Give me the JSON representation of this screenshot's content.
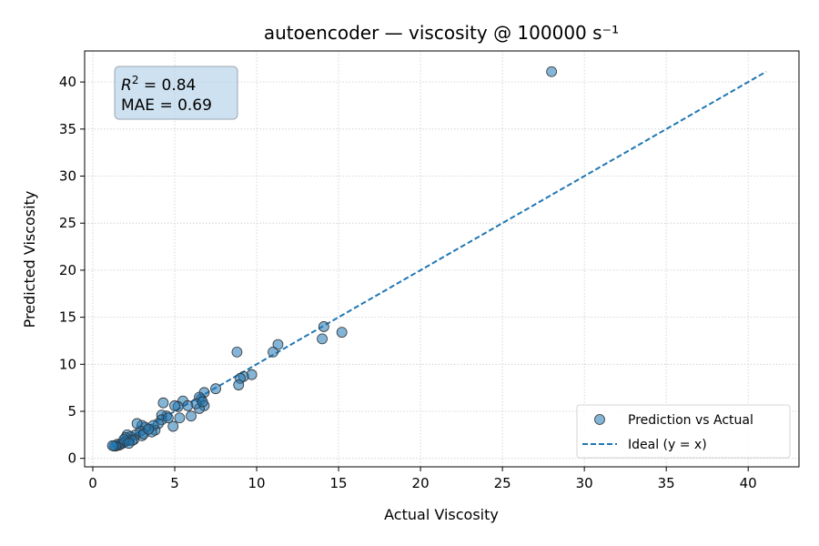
{
  "chart_data": {
    "type": "scatter",
    "title": "autoencoder — viscosity @ 100000 s⁻¹",
    "xlabel": "Actual Viscosity",
    "ylabel": "Predicted Viscosity",
    "xlim": [
      -0.5,
      43.1
    ],
    "ylim": [
      -0.9,
      43.3
    ],
    "xticks": [
      0,
      5,
      10,
      15,
      20,
      25,
      30,
      35,
      40
    ],
    "yticks": [
      0,
      5,
      10,
      15,
      20,
      25,
      30,
      35,
      40
    ],
    "grid": true,
    "legend_position": "bottom-right",
    "colors": {
      "points": "#1f77b4",
      "ideal_line": "#1f77b4",
      "metrics_box": "#b9d4ea"
    },
    "metrics": {
      "r2_label": "R",
      "r2_superscript": "2",
      "r2_value": " = 0.84",
      "mae": "MAE = 0.69"
    },
    "series": [
      {
        "name": "Prediction vs Actual",
        "kind": "scatter",
        "points": [
          [
            28.0,
            41.1
          ],
          [
            8.8,
            11.3
          ],
          [
            11.3,
            12.1
          ],
          [
            11.0,
            11.3
          ],
          [
            14.1,
            14.0
          ],
          [
            14.0,
            12.7
          ],
          [
            15.2,
            13.4
          ],
          [
            9.7,
            8.9
          ],
          [
            9.2,
            8.7
          ],
          [
            9.0,
            8.5
          ],
          [
            8.9,
            7.8
          ],
          [
            7.5,
            7.4
          ],
          [
            6.8,
            7.0
          ],
          [
            6.6,
            6.3
          ],
          [
            6.5,
            6.5
          ],
          [
            6.8,
            5.6
          ],
          [
            6.5,
            5.3
          ],
          [
            6.3,
            5.8
          ],
          [
            6.0,
            4.5
          ],
          [
            5.5,
            6.1
          ],
          [
            5.3,
            4.3
          ],
          [
            5.2,
            5.5
          ],
          [
            5.0,
            5.6
          ],
          [
            4.9,
            3.4
          ],
          [
            4.5,
            4.5
          ],
          [
            4.3,
            5.9
          ],
          [
            4.2,
            4.6
          ],
          [
            4.2,
            4.1
          ],
          [
            4.0,
            3.7
          ],
          [
            3.8,
            3.0
          ],
          [
            3.7,
            3.5
          ],
          [
            3.6,
            2.8
          ],
          [
            3.2,
            3.3
          ],
          [
            3.0,
            3.5
          ],
          [
            3.0,
            2.4
          ],
          [
            2.9,
            2.9
          ],
          [
            2.7,
            3.7
          ],
          [
            2.6,
            2.5
          ],
          [
            2.5,
            2.0
          ],
          [
            2.3,
            2.3
          ],
          [
            2.2,
            1.9
          ],
          [
            2.1,
            2.5
          ],
          [
            2.0,
            2.2
          ],
          [
            2.0,
            1.8
          ],
          [
            1.9,
            1.7
          ],
          [
            1.8,
            1.6
          ],
          [
            1.7,
            1.5
          ],
          [
            1.6,
            1.4
          ],
          [
            1.5,
            1.5
          ],
          [
            1.4,
            1.3
          ],
          [
            1.3,
            1.3
          ],
          [
            1.2,
            1.35
          ],
          [
            2.4,
            1.9
          ],
          [
            3.1,
            2.6
          ],
          [
            4.6,
            4.3
          ],
          [
            6.7,
            6.0
          ],
          [
            5.8,
            5.6
          ],
          [
            3.4,
            3.1
          ],
          [
            1.9,
            2.0
          ],
          [
            2.2,
            1.6
          ]
        ]
      },
      {
        "name": "Ideal (y = x)",
        "kind": "line",
        "points": [
          [
            1.2,
            1.2
          ],
          [
            41.1,
            41.1
          ]
        ]
      }
    ]
  }
}
